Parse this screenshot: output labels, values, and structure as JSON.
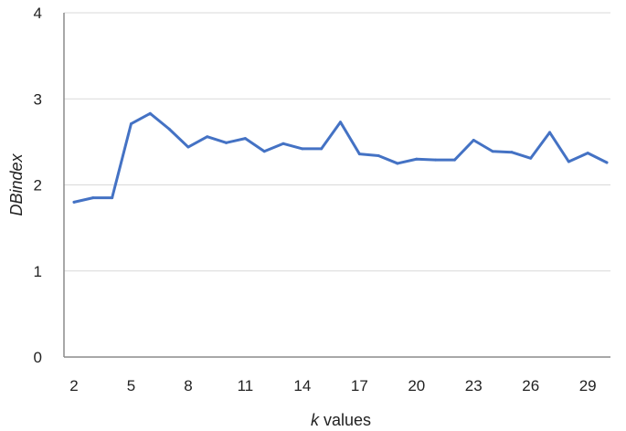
{
  "chart_data": {
    "type": "line",
    "title": "",
    "xlabel_italic": "k",
    "xlabel_rest": " values",
    "ylabel": "DBindex",
    "xlim": [
      2,
      30
    ],
    "ylim": [
      0,
      4
    ],
    "x_ticks": [
      2,
      5,
      8,
      11,
      14,
      17,
      20,
      23,
      26,
      29
    ],
    "y_ticks": [
      0,
      1,
      2,
      3,
      4
    ],
    "grid": "horizontal",
    "line_color": "#4472c4",
    "grid_color": "#d9d9d9",
    "axis_color": "#8c8c8c",
    "series": [
      {
        "x": [
          2,
          3,
          4,
          5,
          6,
          7,
          8,
          9,
          10,
          11,
          12,
          13,
          14,
          15,
          16,
          17,
          18,
          19,
          20,
          21,
          22,
          23,
          24,
          25,
          26,
          27,
          28,
          29,
          30
        ],
        "values": [
          1.8,
          1.85,
          1.85,
          2.71,
          2.83,
          2.65,
          2.44,
          2.56,
          2.49,
          2.54,
          2.39,
          2.48,
          2.42,
          2.42,
          2.73,
          2.36,
          2.34,
          2.25,
          2.3,
          2.29,
          2.29,
          2.52,
          2.39,
          2.38,
          2.31,
          2.61,
          2.27,
          2.37,
          2.26
        ]
      }
    ]
  }
}
